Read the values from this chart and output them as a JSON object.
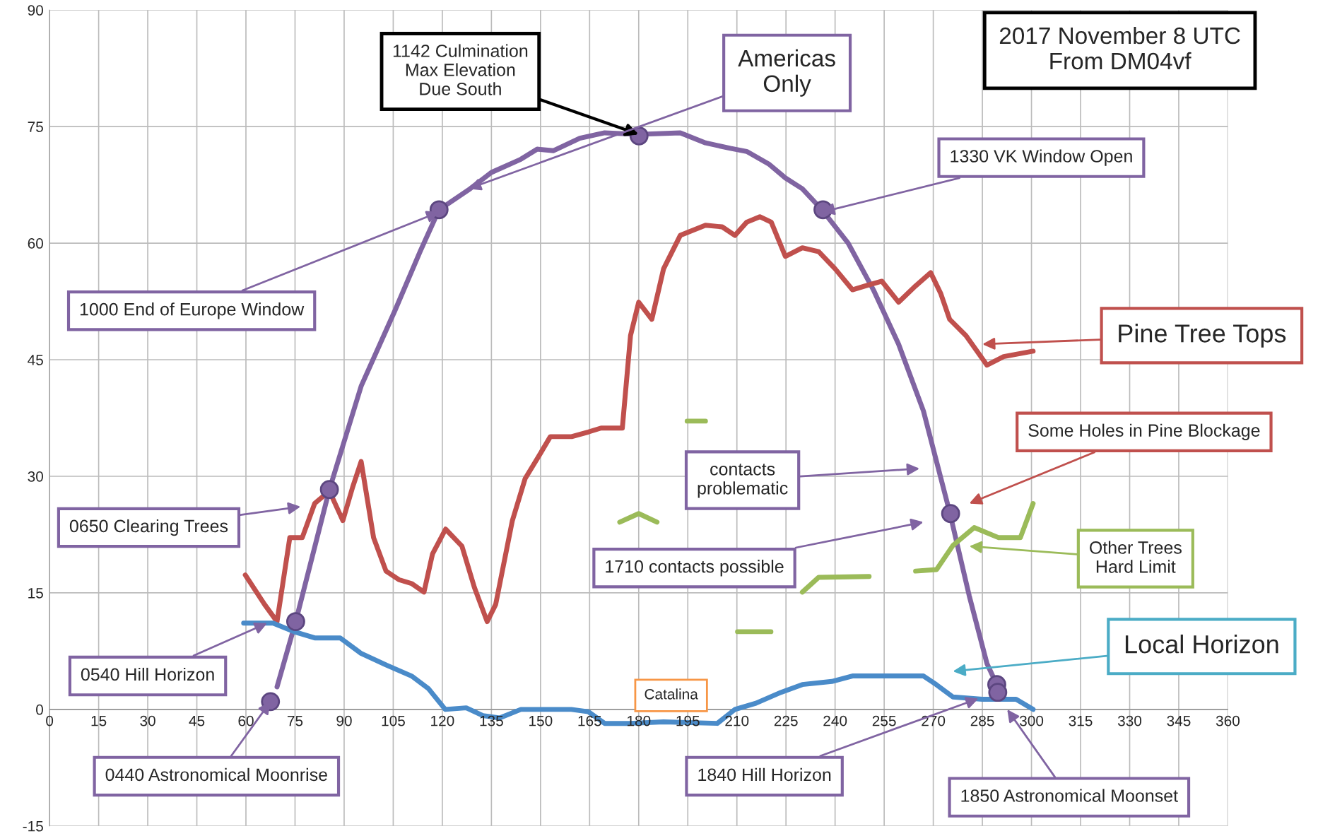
{
  "chart_data": {
    "type": "line",
    "xlim": [
      0,
      360
    ],
    "ylim": [
      -15,
      90
    ],
    "xticks": [
      0,
      15,
      30,
      45,
      60,
      75,
      90,
      105,
      120,
      135,
      150,
      165,
      180,
      195,
      210,
      225,
      240,
      255,
      270,
      285,
      300,
      315,
      330,
      345,
      360
    ],
    "yticks": [
      -15,
      0,
      15,
      30,
      45,
      60,
      75,
      90
    ],
    "grid": true,
    "legend": false,
    "series": [
      {
        "type": "line",
        "color": "#8064a2",
        "x": [
          69.5,
          75.2,
          85.5,
          95.2,
          105.5,
          113.2,
          119,
          128.5,
          135,
          144,
          149,
          154,
          162,
          169.6,
          180,
          192.7,
          200.4,
          208,
          213,
          219.7,
          224.8,
          230,
          236,
          244,
          251.7,
          259.4,
          267,
          275,
          281,
          286.4,
          289.4
        ],
        "values": [
          2.9,
          11.3,
          28.3,
          41.6,
          51.3,
          58.9,
          64.3,
          67,
          69.1,
          70.8,
          72.1,
          71.9,
          73.5,
          74.2,
          74,
          74.2,
          72.9,
          72.2,
          71.8,
          70.2,
          68.4,
          67,
          64.3,
          60,
          54,
          47,
          38.4,
          25.4,
          14.6,
          5.9,
          3.2
        ]
      },
      {
        "type": "line",
        "color": "#c0504d",
        "x": [
          59.8,
          65.7,
          69.5,
          73.4,
          77.2,
          81,
          85.5,
          89.6,
          92.6,
          95.2,
          99,
          102.8,
          106.7,
          110.6,
          114.4,
          117,
          121,
          126,
          129.8,
          133.7,
          136.3,
          141.4,
          145.3,
          149.2,
          153,
          159.5,
          164.6,
          168.5,
          175,
          177.5,
          180,
          184,
          187.6,
          192.7,
          200.4,
          205.5,
          209.4,
          213,
          217,
          220.5,
          224.8,
          230,
          235,
          240,
          245.3,
          249.2,
          254.3,
          259.4,
          264.6,
          269.2,
          272.3,
          275,
          280,
          286.4,
          291.5,
          300.5
        ],
        "values": [
          17.3,
          13.5,
          11.3,
          22.1,
          22.1,
          26.5,
          28.1,
          24.3,
          28.6,
          31.9,
          22.1,
          17.8,
          16.7,
          16.2,
          15.1,
          20,
          23.2,
          21,
          15.7,
          11.3,
          13.5,
          24.3,
          29.7,
          32.4,
          35.1,
          35.1,
          35.7,
          36.2,
          36.2,
          48.1,
          52.4,
          50.2,
          56.7,
          61,
          62.3,
          62.1,
          61,
          62.7,
          63.4,
          62.7,
          58.3,
          59.4,
          58.9,
          56.7,
          54,
          54.5,
          55.1,
          52.4,
          54.5,
          56.2,
          53.5,
          50.2,
          48.1,
          44.3,
          45.4,
          46.1
        ]
      },
      {
        "type": "line",
        "color": "#4a8bc9",
        "x": [
          59.3,
          68.3,
          74.7,
          81,
          88.8,
          95.2,
          102.9,
          110.6,
          115.7,
          120.9,
          127.3,
          132.4,
          137.5,
          144,
          159.4,
          164.6,
          169.6,
          177.3,
          187.6,
          204,
          209.4,
          215.8,
          223.5,
          230,
          239,
          245.3,
          254.3,
          267,
          270.9,
          276,
          285,
          295.3,
          300.5
        ],
        "values": [
          11.1,
          11.1,
          10,
          9.2,
          9.2,
          7.2,
          5.7,
          4.3,
          2.7,
          0,
          0.2,
          -0.8,
          -1.1,
          0,
          0,
          -0.3,
          -1.8,
          -1.8,
          -1.6,
          -1.8,
          0,
          0.8,
          2.2,
          3.2,
          3.6,
          4.3,
          4.3,
          4.3,
          3.2,
          1.6,
          1.3,
          1.3,
          0
        ]
      },
      {
        "type": "line",
        "color": "#9bbb59",
        "x": [
          194.8,
          200.4,
          null,
          174.2,
          180,
          185.6,
          null,
          210.2,
          220.4,
          null,
          230,
          235,
          250.4,
          null,
          264.6,
          271,
          276,
          282.5,
          290,
          296.6,
          300.5
        ],
        "values": [
          37.1,
          37.1,
          null,
          24.1,
          25.2,
          24.1,
          null,
          10,
          10,
          null,
          15.1,
          17,
          17.1,
          null,
          17.8,
          18,
          21.1,
          23.4,
          22.1,
          22.1,
          26.5
        ]
      },
      {
        "type": "scatter",
        "color": "#8064a2",
        "marker": "circle",
        "x": [
          67.5,
          75.2,
          85.5,
          119,
          180.1,
          236.3,
          275.3,
          289.4,
          289.7
        ],
        "values": [
          1,
          11.3,
          28.3,
          64.3,
          73.8,
          64.3,
          25.2,
          3.2,
          2.2
        ]
      }
    ],
    "annotations": [
      "2017 November 8 UTC\nFrom DM04vf",
      {
        "text": "1142 Culmination\nMax Elevation\nDue South",
        "x": 180,
        "y": 74
      },
      {
        "text": "Americas\nOnly",
        "x": 128,
        "y": 67
      },
      {
        "text": "1330 VK Window Open",
        "x": 236,
        "y": 64
      },
      {
        "text": "1000 End of Europe Window",
        "x": 119,
        "y": 64
      },
      "Pine Tree Tops",
      "Some Holes in Pine Blockage",
      "contacts\nproblematic",
      "0650 Clearing Trees",
      "1710 contacts possible",
      "Other Trees\nHard Limit",
      "Local Horizon",
      "Catalina",
      {
        "text": "0540 Hill Horizon",
        "x": 66.5,
        "y": 11.1
      },
      {
        "text": "0440 Astronomical Moonrise",
        "x": 67.5,
        "y": 1
      },
      {
        "text": "1840 Hill Horizon",
        "x": 283.8,
        "y": 1.4
      },
      "1850 Astronomical Moonset"
    ]
  }
}
